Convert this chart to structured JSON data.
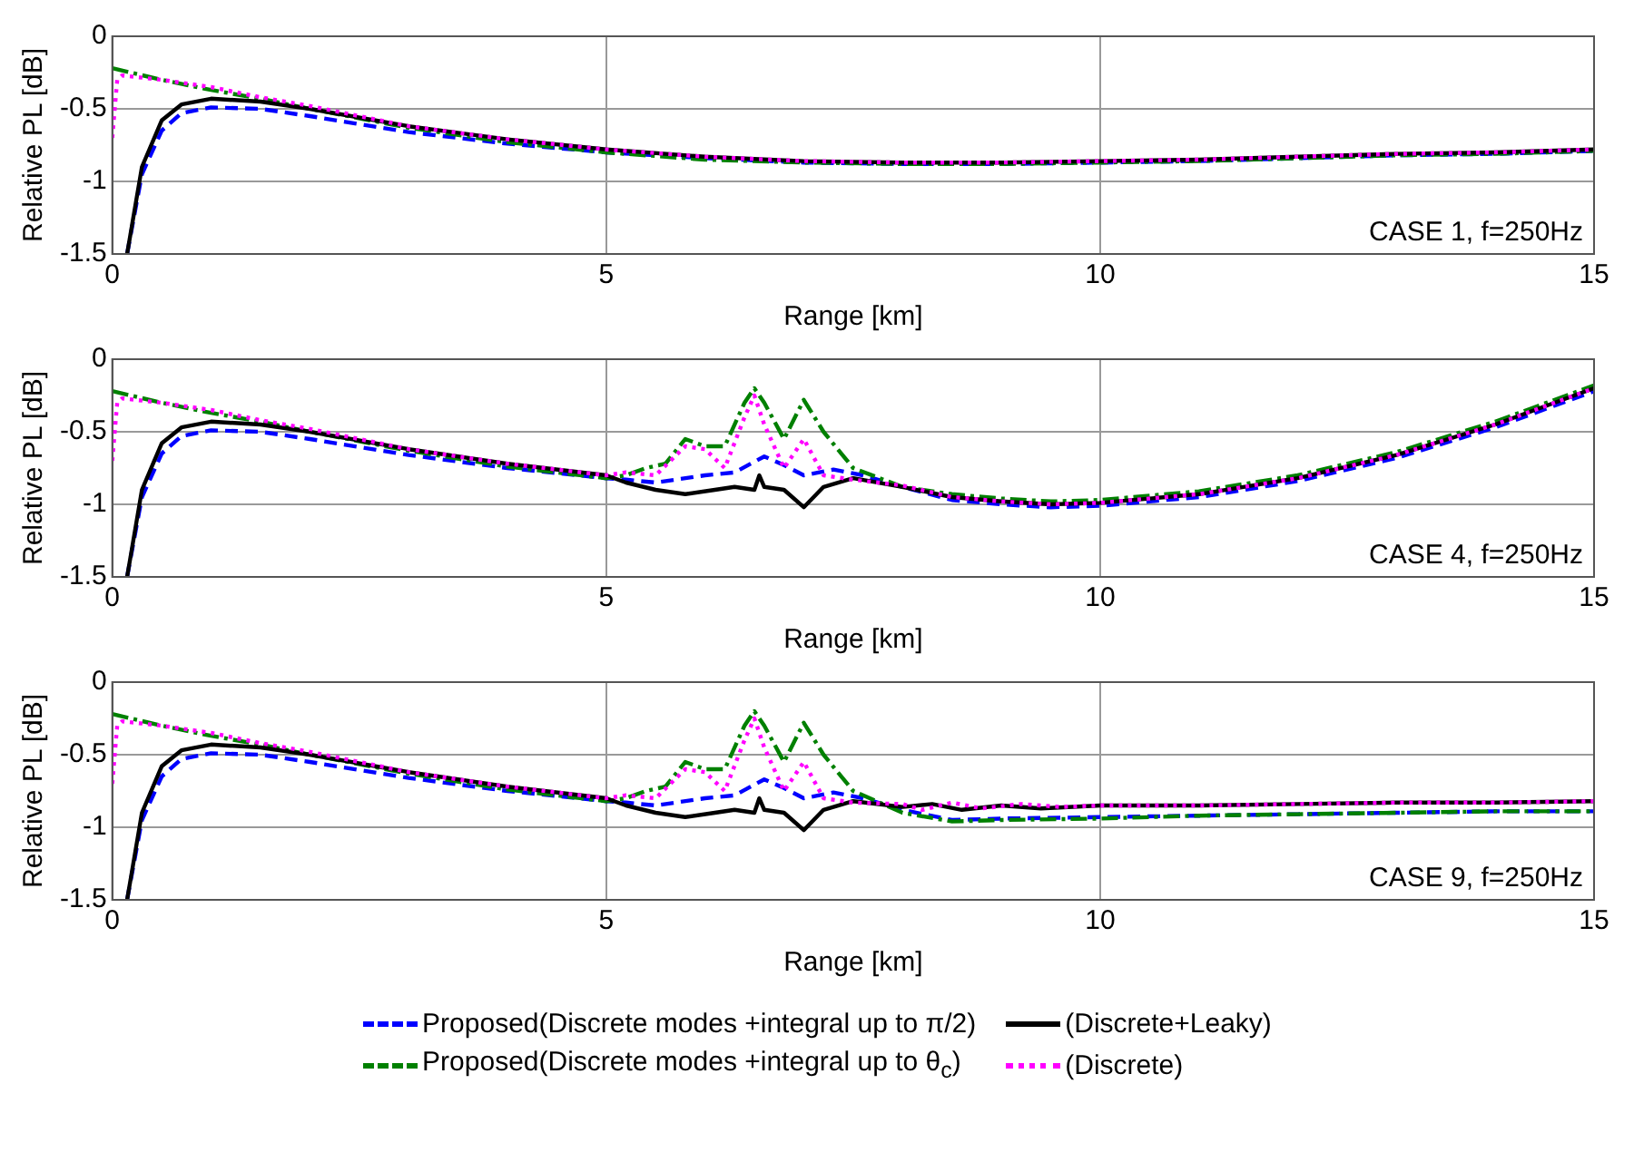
{
  "chart_data": [
    {
      "type": "line",
      "xlabel": "Range [km]",
      "ylabel": "Relative PL [dB]",
      "xlim": [
        0,
        15
      ],
      "xticks": [
        0,
        5,
        10,
        15
      ],
      "ylim": [
        -1.5,
        0
      ],
      "yticks": [
        -1.5,
        -1,
        -0.5,
        0
      ],
      "grid": true,
      "marker": "none",
      "legend": false,
      "annotations": [
        "CASE 1, f=250Hz"
      ],
      "series": [
        {
          "color": "#0000ff",
          "line_style": "dashed",
          "x": [
            0.15,
            0.3,
            0.5,
            0.7,
            1,
            1.5,
            2,
            3,
            4,
            5,
            6,
            7,
            8,
            9,
            10,
            11,
            12,
            13,
            14,
            15
          ],
          "values": [
            -1.5,
            -0.95,
            -0.65,
            -0.53,
            -0.49,
            -0.5,
            -0.55,
            -0.66,
            -0.74,
            -0.8,
            -0.84,
            -0.87,
            -0.88,
            -0.88,
            -0.87,
            -0.86,
            -0.84,
            -0.82,
            -0.81,
            -0.79
          ]
        },
        {
          "color": "#008000",
          "line_style": "dashdot",
          "x": [
            0,
            0.5,
            1,
            1.5,
            2,
            3,
            4,
            5,
            6,
            7,
            8,
            9,
            10,
            11,
            12,
            13,
            14,
            15
          ],
          "values": [
            -0.22,
            -0.3,
            -0.37,
            -0.43,
            -0.5,
            -0.63,
            -0.73,
            -0.8,
            -0.85,
            -0.87,
            -0.88,
            -0.88,
            -0.87,
            -0.86,
            -0.84,
            -0.82,
            -0.81,
            -0.79
          ]
        },
        {
          "color": "#000000",
          "line_style": "solid",
          "x": [
            0.15,
            0.3,
            0.5,
            0.7,
            1,
            1.5,
            2,
            3,
            4,
            5,
            6,
            7,
            8,
            9,
            10,
            11,
            12,
            13,
            14,
            15
          ],
          "values": [
            -1.5,
            -0.9,
            -0.58,
            -0.47,
            -0.43,
            -0.45,
            -0.5,
            -0.62,
            -0.71,
            -0.78,
            -0.83,
            -0.86,
            -0.87,
            -0.87,
            -0.86,
            -0.85,
            -0.83,
            -0.81,
            -0.8,
            -0.78
          ]
        },
        {
          "color": "#ff00ff",
          "line_style": "dotted",
          "x": [
            0,
            0.05,
            0.1,
            0.5,
            1,
            1.5,
            2,
            3,
            4,
            5,
            6,
            7,
            8,
            9,
            10,
            11,
            12,
            13,
            14,
            15
          ],
          "values": [
            -0.7,
            -0.3,
            -0.27,
            -0.3,
            -0.35,
            -0.42,
            -0.48,
            -0.62,
            -0.71,
            -0.78,
            -0.83,
            -0.86,
            -0.87,
            -0.87,
            -0.86,
            -0.85,
            -0.83,
            -0.81,
            -0.8,
            -0.78
          ]
        }
      ]
    },
    {
      "type": "line",
      "xlabel": "Range [km]",
      "ylabel": "Relative PL [dB]",
      "xlim": [
        0,
        15
      ],
      "xticks": [
        0,
        5,
        10,
        15
      ],
      "ylim": [
        -1.5,
        0
      ],
      "yticks": [
        -1.5,
        -1,
        -0.5,
        0
      ],
      "grid": true,
      "marker": "none",
      "legend": false,
      "annotations": [
        "CASE 4, f=250Hz"
      ],
      "series": [
        {
          "color": "#0000ff",
          "line_style": "dashed",
          "x": [
            0.15,
            0.3,
            0.5,
            0.7,
            1,
            1.5,
            2,
            3,
            4,
            5,
            5.2,
            5.5,
            6,
            6.3,
            6.6,
            6.8,
            7,
            7.3,
            7.6,
            8,
            8.5,
            9,
            9.5,
            10,
            11,
            12,
            13,
            14,
            15
          ],
          "values": [
            -1.5,
            -0.95,
            -0.65,
            -0.53,
            -0.49,
            -0.5,
            -0.55,
            -0.66,
            -0.75,
            -0.82,
            -0.83,
            -0.85,
            -0.8,
            -0.78,
            -0.67,
            -0.73,
            -0.8,
            -0.76,
            -0.8,
            -0.88,
            -0.97,
            -1.0,
            -1.02,
            -1.01,
            -0.95,
            -0.84,
            -0.68,
            -0.47,
            -0.22
          ]
        },
        {
          "color": "#008000",
          "line_style": "dashdot",
          "x": [
            0,
            0.5,
            1,
            1.5,
            2,
            3,
            4,
            5,
            5.2,
            5.4,
            5.6,
            5.8,
            6,
            6.2,
            6.4,
            6.5,
            6.6,
            6.8,
            7,
            7.2,
            7.5,
            8,
            8.5,
            9,
            9.5,
            10,
            11,
            12,
            13,
            14,
            15
          ],
          "values": [
            -0.22,
            -0.3,
            -0.37,
            -0.43,
            -0.5,
            -0.63,
            -0.74,
            -0.82,
            -0.8,
            -0.75,
            -0.72,
            -0.55,
            -0.6,
            -0.6,
            -0.3,
            -0.2,
            -0.3,
            -0.55,
            -0.28,
            -0.5,
            -0.75,
            -0.88,
            -0.93,
            -0.96,
            -0.98,
            -0.97,
            -0.91,
            -0.8,
            -0.64,
            -0.43,
            -0.18
          ]
        },
        {
          "color": "#000000",
          "line_style": "solid",
          "x": [
            0.15,
            0.3,
            0.5,
            0.7,
            1,
            1.5,
            2,
            3,
            4,
            5,
            5.2,
            5.5,
            5.8,
            6.1,
            6.3,
            6.5,
            6.55,
            6.6,
            6.8,
            7,
            7.2,
            7.5,
            8,
            8.5,
            9,
            9.5,
            10,
            11,
            12,
            13,
            14,
            15
          ],
          "values": [
            -1.5,
            -0.9,
            -0.58,
            -0.47,
            -0.43,
            -0.45,
            -0.5,
            -0.62,
            -0.72,
            -0.8,
            -0.85,
            -0.9,
            -0.93,
            -0.9,
            -0.88,
            -0.9,
            -0.8,
            -0.88,
            -0.9,
            -1.02,
            -0.88,
            -0.82,
            -0.88,
            -0.95,
            -0.98,
            -1.0,
            -0.99,
            -0.93,
            -0.82,
            -0.66,
            -0.45,
            -0.2
          ]
        },
        {
          "color": "#ff00ff",
          "line_style": "dotted",
          "x": [
            0,
            0.05,
            0.1,
            0.5,
            1,
            1.5,
            2,
            3,
            4,
            5,
            5.2,
            5.5,
            5.8,
            6,
            6.2,
            6.4,
            6.5,
            6.6,
            6.8,
            7,
            7.2,
            7.5,
            8,
            8.5,
            9,
            9.5,
            10,
            11,
            12,
            13,
            14,
            15
          ],
          "values": [
            -0.7,
            -0.3,
            -0.27,
            -0.3,
            -0.35,
            -0.42,
            -0.48,
            -0.62,
            -0.72,
            -0.8,
            -0.78,
            -0.8,
            -0.6,
            -0.62,
            -0.75,
            -0.4,
            -0.25,
            -0.45,
            -0.75,
            -0.55,
            -0.8,
            -0.83,
            -0.87,
            -0.95,
            -0.98,
            -1.0,
            -0.99,
            -0.93,
            -0.82,
            -0.66,
            -0.45,
            -0.2
          ]
        }
      ]
    },
    {
      "type": "line",
      "xlabel": "Range [km]",
      "ylabel": "Relative PL [dB]",
      "xlim": [
        0,
        15
      ],
      "xticks": [
        0,
        5,
        10,
        15
      ],
      "ylim": [
        -1.5,
        0
      ],
      "yticks": [
        -1.5,
        -1,
        -0.5,
        0
      ],
      "grid": true,
      "marker": "none",
      "legend": "bottom",
      "annotations": [
        "CASE 9, f=250Hz"
      ],
      "series": [
        {
          "name": "Proposed(Discrete modes +integral up to π/2)",
          "color": "#0000ff",
          "line_style": "dashed",
          "x": [
            0.15,
            0.3,
            0.5,
            0.7,
            1,
            1.5,
            2,
            3,
            4,
            5,
            5.2,
            5.5,
            6,
            6.3,
            6.6,
            6.8,
            7,
            7.3,
            7.6,
            8,
            8.5,
            9,
            10,
            11,
            12,
            13,
            14,
            15
          ],
          "values": [
            -1.5,
            -0.95,
            -0.65,
            -0.53,
            -0.49,
            -0.5,
            -0.55,
            -0.66,
            -0.75,
            -0.82,
            -0.83,
            -0.85,
            -0.8,
            -0.78,
            -0.67,
            -0.73,
            -0.8,
            -0.76,
            -0.8,
            -0.88,
            -0.95,
            -0.94,
            -0.93,
            -0.92,
            -0.91,
            -0.9,
            -0.89,
            -0.89
          ]
        },
        {
          "name": "Proposed(Discrete modes +integral up to θ$_{c}$)",
          "color": "#008000",
          "line_style": "dashdot",
          "x": [
            0,
            0.5,
            1,
            1.5,
            2,
            3,
            4,
            5,
            5.2,
            5.4,
            5.6,
            5.8,
            6,
            6.2,
            6.4,
            6.5,
            6.6,
            6.8,
            7,
            7.2,
            7.5,
            8,
            8.5,
            9,
            10,
            11,
            12,
            13,
            14,
            15
          ],
          "values": [
            -0.22,
            -0.3,
            -0.37,
            -0.43,
            -0.5,
            -0.63,
            -0.74,
            -0.82,
            -0.8,
            -0.75,
            -0.72,
            -0.55,
            -0.6,
            -0.6,
            -0.3,
            -0.2,
            -0.3,
            -0.55,
            -0.28,
            -0.5,
            -0.75,
            -0.9,
            -0.96,
            -0.95,
            -0.94,
            -0.92,
            -0.91,
            -0.9,
            -0.89,
            -0.89
          ]
        },
        {
          "name": "(Discrete+Leaky)",
          "color": "#000000",
          "line_style": "solid",
          "x": [
            0.15,
            0.3,
            0.5,
            0.7,
            1,
            1.5,
            2,
            3,
            4,
            5,
            5.2,
            5.5,
            5.8,
            6.1,
            6.3,
            6.5,
            6.55,
            6.6,
            6.8,
            7,
            7.2,
            7.5,
            8,
            8.3,
            8.6,
            9,
            9.4,
            10,
            11,
            12,
            13,
            14,
            15
          ],
          "values": [
            -1.5,
            -0.9,
            -0.58,
            -0.47,
            -0.43,
            -0.45,
            -0.5,
            -0.62,
            -0.72,
            -0.8,
            -0.85,
            -0.9,
            -0.93,
            -0.9,
            -0.88,
            -0.9,
            -0.8,
            -0.88,
            -0.9,
            -1.02,
            -0.88,
            -0.82,
            -0.86,
            -0.84,
            -0.88,
            -0.85,
            -0.87,
            -0.85,
            -0.85,
            -0.84,
            -0.83,
            -0.83,
            -0.82
          ]
        },
        {
          "name": "(Discrete)",
          "color": "#ff00ff",
          "line_style": "dotted",
          "x": [
            0,
            0.05,
            0.1,
            0.5,
            1,
            1.5,
            2,
            3,
            4,
            5,
            5.2,
            5.5,
            5.8,
            6,
            6.2,
            6.4,
            6.5,
            6.6,
            6.8,
            7,
            7.2,
            7.5,
            8,
            8.2,
            8.5,
            8.8,
            9.2,
            9.6,
            10,
            11,
            12,
            13,
            14,
            15
          ],
          "values": [
            -0.7,
            -0.3,
            -0.27,
            -0.3,
            -0.35,
            -0.42,
            -0.48,
            -0.62,
            -0.72,
            -0.8,
            -0.78,
            -0.8,
            -0.6,
            -0.62,
            -0.75,
            -0.4,
            -0.25,
            -0.45,
            -0.75,
            -0.55,
            -0.8,
            -0.83,
            -0.84,
            -0.88,
            -0.83,
            -0.87,
            -0.84,
            -0.86,
            -0.85,
            -0.85,
            -0.84,
            -0.83,
            -0.83,
            -0.82
          ]
        }
      ]
    }
  ]
}
